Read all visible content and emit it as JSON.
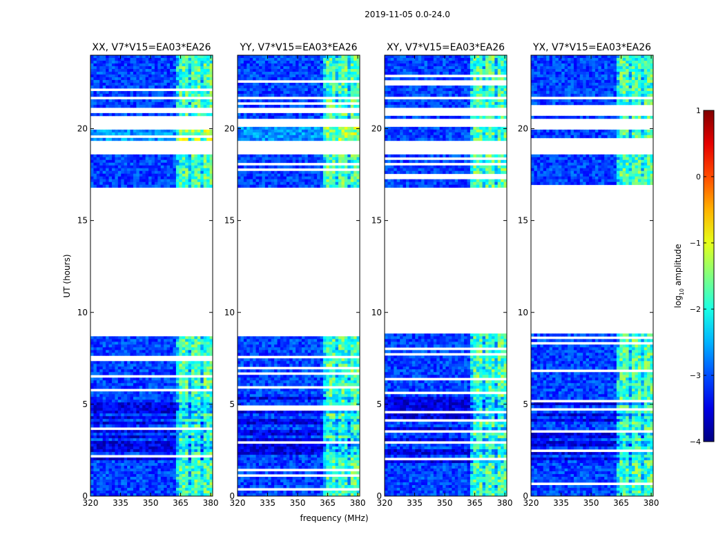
{
  "chart_data": {
    "type": "heatmap",
    "suptitle": "2019-11-05 0.0-24.0",
    "panels": [
      {
        "title": "XX, V7*V15=EA03*EA26"
      },
      {
        "title": "YY, V7*V15=EA03*EA26"
      },
      {
        "title": "XY, V7*V15=EA03*EA26"
      },
      {
        "title": "YX, V7*V15=EA03*EA26"
      }
    ],
    "xlabel": "frequency (MHz)",
    "ylabel": "UT (hours)",
    "xlim": [
      320,
      381
    ],
    "ylim": [
      0,
      24
    ],
    "xticks": [
      320,
      335,
      350,
      365,
      380
    ],
    "yticks": [
      0,
      5,
      10,
      15,
      20
    ],
    "colorbar": {
      "label": "log10 amplitude",
      "range": [
        -4,
        1
      ],
      "ticks": [
        1,
        0,
        -1,
        -2,
        -3,
        -4
      ],
      "colormap": "jet"
    },
    "data_blocks_hours": [
      [
        0,
        8.9
      ],
      [
        16.8,
        18.6
      ],
      [
        19.4,
        20.1
      ],
      [
        20.5,
        20.8
      ],
      [
        21.2,
        21.6
      ],
      [
        21.8,
        24
      ]
    ],
    "bright_band_mhz": [
      362,
      381
    ],
    "colors": {
      "background": "#0a2dff",
      "dark": "#00008c",
      "mid": "#1f78ff",
      "bright": "#44f0d0",
      "hot": "#c8ff4c"
    }
  }
}
